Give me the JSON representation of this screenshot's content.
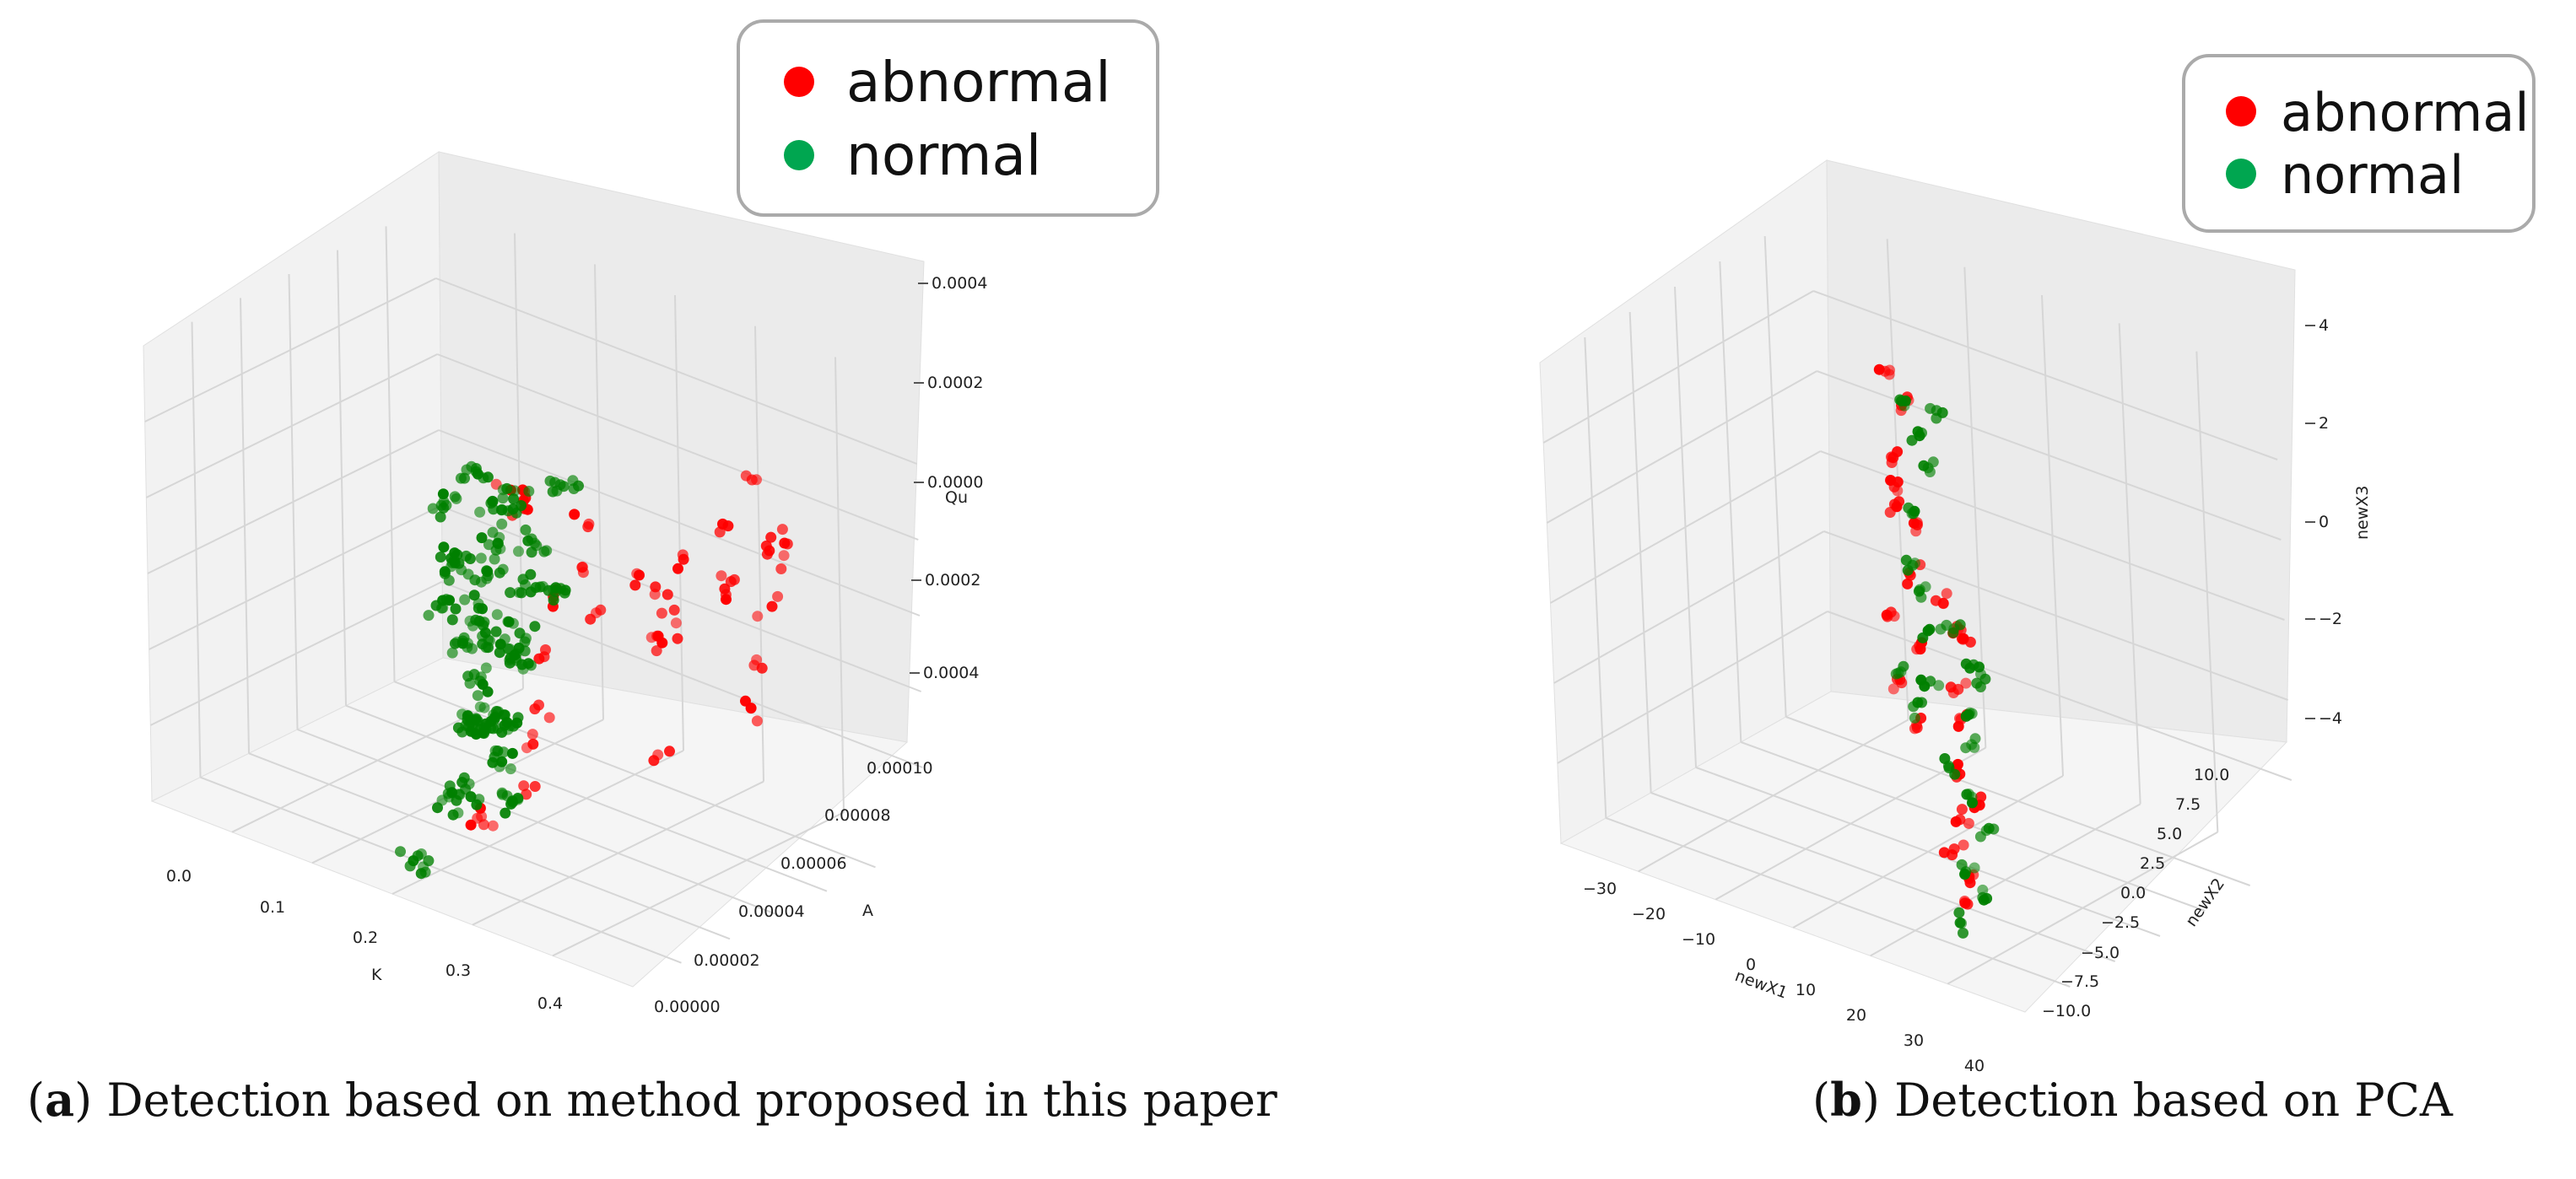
{
  "chart_data": [
    {
      "type": "scatter",
      "projection": "3d",
      "title": "",
      "xlabel": "K",
      "ylabel": "A",
      "zlabel": "Qu",
      "x_ticks": [
        "0.0",
        "0.1",
        "0.2",
        "0.3",
        "0.4"
      ],
      "y_ticks": [
        "0.00000",
        "0.00002",
        "0.00004",
        "0.00006",
        "0.00008",
        "0.00010"
      ],
      "z_ticks": [
        "0.0004",
        "0.0002",
        "0.0000",
        "0.0002",
        "0.0004"
      ],
      "legend": {
        "position": "top-right",
        "entries": [
          {
            "label": "abnormal",
            "color": "#ff0000"
          },
          {
            "label": "normal",
            "color": "#00a650"
          }
        ]
      },
      "series": [
        {
          "name": "abnormal",
          "color": "#ff0000",
          "points": [
            [
              0.3,
              2e-05,
              0.0003
            ],
            [
              0.31,
              4e-05,
              0.00018
            ],
            [
              0.33,
              3e-05,
              0.00012
            ],
            [
              0.35,
              6e-05,
              8e-05
            ],
            [
              0.36,
              5e-05,
              4e-05
            ],
            [
              0.37,
              7e-05,
              2e-05
            ],
            [
              0.38,
              4e-05,
              -2e-05
            ],
            [
              0.39,
              6e-05,
              5e-05
            ],
            [
              0.4,
              8e-05,
              0.0001
            ],
            [
              0.41,
              7e-05,
              0.0
            ],
            [
              0.34,
              6e-05,
              -4e-05
            ],
            [
              0.33,
              5e-05,
              6e-05
            ],
            [
              0.32,
              4e-05,
              0.0
            ],
            [
              0.3,
              3e-05,
              4e-05
            ],
            [
              0.36,
              7e-05,
              0.00012
            ],
            [
              0.38,
              8e-05,
              6e-05
            ],
            [
              0.35,
              5e-05,
              -6e-05
            ],
            [
              0.29,
              3e-05,
              -0.0001
            ],
            [
              0.31,
              2e-05,
              -0.00016
            ],
            [
              0.33,
              1e-05,
              -0.0002
            ],
            [
              0.42,
              6e-05,
              -8e-05
            ],
            [
              0.44,
              5e-05,
              -0.00014
            ],
            [
              0.4,
              3e-05,
              -0.00022
            ],
            [
              0.32,
              1e-05,
              -0.0003
            ],
            [
              0.3,
              0.0,
              -0.00036
            ],
            [
              0.28,
              1e-05,
              -0.00042
            ],
            [
              0.34,
              9e-05,
              0.00016
            ],
            [
              0.37,
              9e-05,
              2e-05
            ],
            [
              0.26,
              3e-05,
              0.00024
            ],
            [
              0.25,
              4e-05,
              0.00016
            ]
          ]
        },
        {
          "name": "normal",
          "color": "#008000",
          "points": [
            [
              0.2,
              4e-05,
              0.0002
            ],
            [
              0.21,
              5e-05,
              0.00012
            ],
            [
              0.22,
              4e-05,
              6e-05
            ],
            [
              0.2,
              3e-05,
              2e-05
            ],
            [
              0.21,
              4e-05,
              -2e-05
            ],
            [
              0.22,
              5e-05,
              -6e-05
            ],
            [
              0.2,
              4e-05,
              -0.0001
            ],
            [
              0.21,
              3e-05,
              -0.00014
            ],
            [
              0.22,
              4e-05,
              -0.00018
            ],
            [
              0.21,
              5e-05,
              -0.00022
            ],
            [
              0.2,
              4e-05,
              -0.00026
            ],
            [
              0.22,
              3e-05,
              -0.0003
            ],
            [
              0.21,
              4e-05,
              -0.00034
            ],
            [
              0.2,
              5e-05,
              -0.00038
            ],
            [
              0.22,
              4e-05,
              -0.00042
            ],
            [
              0.21,
              3e-05,
              -0.00046
            ],
            [
              0.23,
              4e-05,
              -0.0005
            ],
            [
              0.19,
              5e-05,
              8e-05
            ],
            [
              0.18,
              4e-05,
              0.0
            ],
            [
              0.19,
              3e-05,
              -8e-05
            ],
            [
              0.23,
              5e-05,
              4e-05
            ],
            [
              0.24,
              4e-05,
              -0.00012
            ],
            [
              0.18,
              5e-05,
              -0.0002
            ],
            [
              0.24,
              3e-05,
              -0.00028
            ],
            [
              0.19,
              4e-05,
              -0.00036
            ],
            [
              0.23,
              6e-05,
              0.00014
            ],
            [
              0.17,
              4e-05,
              0.0001
            ],
            [
              0.25,
              5e-05,
              -4e-05
            ],
            [
              0.22,
              2e-05,
              -0.00044
            ],
            [
              0.21,
              1e-05,
              -0.00056
            ]
          ]
        }
      ]
    },
    {
      "type": "scatter",
      "projection": "3d",
      "title": "",
      "xlabel": "newX1",
      "ylabel": "newX2",
      "zlabel": "newX3",
      "x_ticks": [
        "−30",
        "−20",
        "−10",
        "0",
        "10",
        "20",
        "30",
        "40"
      ],
      "y_ticks": [
        "−10.0",
        "−7.5",
        "−5.0",
        "−2.5",
        "0.0",
        "2.5",
        "5.0",
        "7.5",
        "10.0"
      ],
      "z_ticks": [
        "−4",
        "−2",
        "0",
        "2",
        "4"
      ],
      "legend": {
        "position": "top-right",
        "entries": [
          {
            "label": "abnormal",
            "color": "#ff0000"
          },
          {
            "label": "normal",
            "color": "#00a650"
          }
        ]
      },
      "series": [
        {
          "name": "abnormal",
          "color": "#ff0000",
          "points": [
            [
              -18,
              8,
              2.8
            ],
            [
              -17,
              9,
              2.2
            ],
            [
              -16,
              7,
              1.4
            ],
            [
              -18,
              8,
              0.6
            ],
            [
              -17,
              9,
              -0.2
            ],
            [
              -16,
              8,
              -1.0
            ],
            [
              -18,
              7,
              -1.8
            ],
            [
              -17,
              9,
              -2.6
            ],
            [
              -19,
              8,
              -3.2
            ],
            [
              -15,
              8,
              -3.8
            ],
            [
              -20,
              9,
              0.0
            ],
            [
              22,
              -6,
              1.8
            ],
            [
              23,
              -5,
              1.0
            ],
            [
              24,
              -6,
              0.2
            ],
            [
              22,
              -5,
              -0.6
            ],
            [
              23,
              -6,
              -1.4
            ],
            [
              24,
              -5,
              -2.2
            ],
            [
              22,
              -6,
              -3.0
            ],
            [
              23,
              -5,
              -3.6
            ],
            [
              24,
              -6,
              -4.0
            ],
            [
              21,
              -5,
              -2.6
            ],
            [
              25,
              -6,
              1.4
            ]
          ]
        },
        {
          "name": "normal",
          "color": "#008000",
          "points": [
            [
              -14,
              7,
              2.6
            ],
            [
              -13,
              8,
              1.8
            ],
            [
              -14,
              9,
              1.0
            ],
            [
              -15,
              8,
              0.2
            ],
            [
              -13,
              7,
              -0.6
            ],
            [
              -14,
              8,
              -1.4
            ],
            [
              -15,
              9,
              -2.2
            ],
            [
              -13,
              8,
              -3.0
            ],
            [
              -14,
              7,
              -3.4
            ],
            [
              -12,
              9,
              2.2
            ],
            [
              -16,
              7,
              -2.8
            ],
            [
              26,
              -7,
              1.6
            ],
            [
              27,
              -6,
              0.8
            ],
            [
              28,
              -7,
              0.0
            ],
            [
              26,
              -6,
              -0.8
            ],
            [
              27,
              -7,
              -1.6
            ],
            [
              28,
              -6,
              -2.4
            ],
            [
              26,
              -7,
              -3.2
            ],
            [
              27,
              -6,
              -3.8
            ],
            [
              25,
              -7,
              -4.2
            ],
            [
              29,
              -6,
              0.6
            ],
            [
              24,
              -7,
              -1.2
            ]
          ]
        }
      ]
    }
  ],
  "captions": {
    "a_label": "a",
    "a_text": "Detection based on method proposed in this paper",
    "b_label": "b",
    "b_text": "Detection based on PCA"
  }
}
